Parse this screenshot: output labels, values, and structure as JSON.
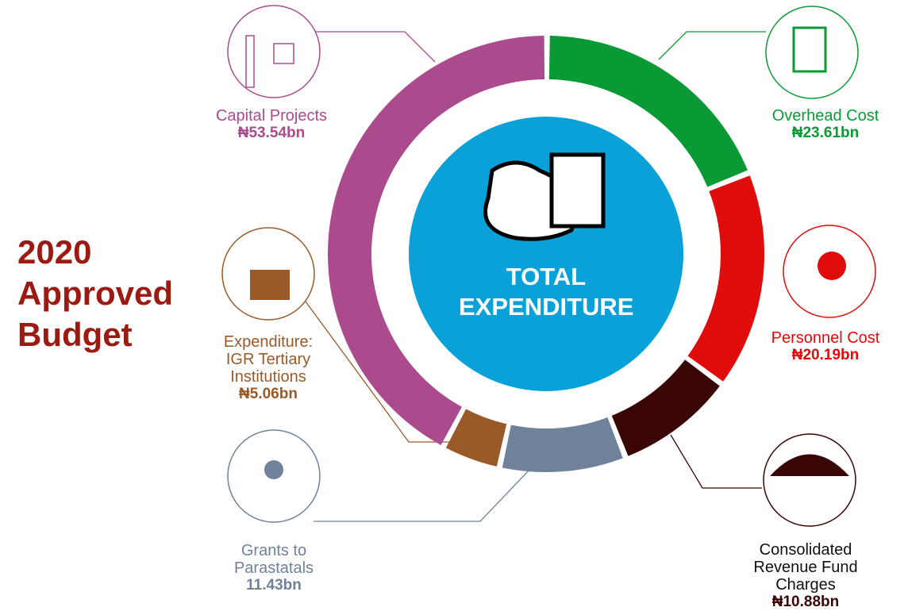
{
  "chart_data": {
    "type": "donut",
    "title": "2020 Approved Budget",
    "center_label": "TOTAL EXPENDITURE",
    "categories": [
      "Overhead Cost",
      "Personnel Cost",
      "Consolidated Revenue Fund Charges",
      "Grants to Parastatals",
      "Expenditure: IGR Tertiary Institutions",
      "Capital Projects"
    ],
    "values": [
      23.61,
      20.19,
      10.88,
      11.43,
      5.06,
      53.54
    ],
    "value_labels": [
      "₦23.61bn",
      "₦20.19bn",
      "₦10.88bn",
      "11.43bn",
      "₦5.06bn",
      "₦53.54bn"
    ],
    "colors": [
      "#0a9a35",
      "#e00b0b",
      "#3a0505",
      "#6f8299",
      "#9a5a28",
      "#ac4a8e"
    ]
  }
}
